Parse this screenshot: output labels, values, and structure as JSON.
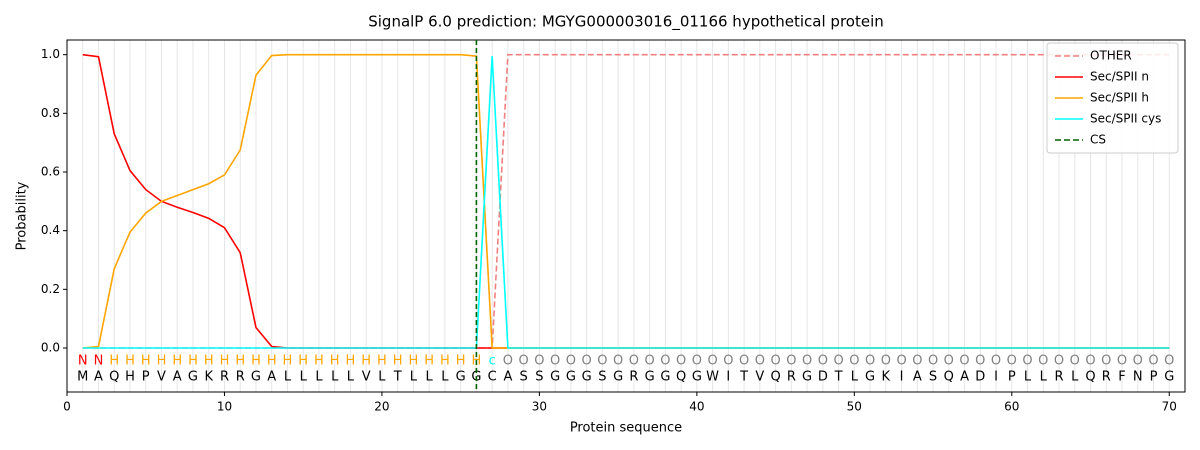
{
  "chart_data": {
    "type": "line",
    "title": "SignalP 6.0 prediction: MGYG000003016_01166 hypothetical protein",
    "x_label": "Protein sequence",
    "y_label": "Probability",
    "x": [
      1,
      2,
      3,
      4,
      5,
      6,
      7,
      8,
      9,
      10,
      11,
      12,
      13,
      14,
      15,
      16,
      17,
      18,
      19,
      20,
      21,
      22,
      23,
      24,
      25,
      26,
      27,
      28,
      29,
      30,
      31,
      32,
      33,
      34,
      35,
      36,
      37,
      38,
      39,
      40,
      41,
      42,
      43,
      44,
      45,
      46,
      47,
      48,
      49,
      50,
      51,
      52,
      53,
      54,
      55,
      56,
      57,
      58,
      59,
      60,
      61,
      62,
      63,
      64,
      65,
      66,
      67,
      68,
      69,
      70
    ],
    "sequence": [
      "M",
      "A",
      "Q",
      "H",
      "P",
      "V",
      "A",
      "G",
      "K",
      "R",
      "R",
      "G",
      "A",
      "L",
      "L",
      "L",
      "L",
      "L",
      "V",
      "L",
      "T",
      "L",
      "L",
      "L",
      "G",
      "G",
      "C",
      "A",
      "S",
      "S",
      "G",
      "G",
      "G",
      "S",
      "G",
      "R",
      "G",
      "G",
      "Q",
      "G",
      "W",
      "I",
      "T",
      "V",
      "Q",
      "R",
      "G",
      "D",
      "T",
      "L",
      "G",
      "K",
      "I",
      "A",
      "S",
      "Q",
      "A",
      "D",
      "I",
      "P",
      "L",
      "L",
      "R",
      "L",
      "Q",
      "R",
      "F",
      "N",
      "P",
      "G"
    ],
    "regions": [
      "N",
      "N",
      "H",
      "H",
      "H",
      "H",
      "H",
      "H",
      "H",
      "H",
      "H",
      "H",
      "H",
      "H",
      "H",
      "H",
      "H",
      "H",
      "H",
      "H",
      "H",
      "H",
      "H",
      "H",
      "H",
      "H",
      "c",
      "O",
      "O",
      "O",
      "O",
      "O",
      "O",
      "O",
      "O",
      "O",
      "O",
      "O",
      "O",
      "O",
      "O",
      "O",
      "O",
      "O",
      "O",
      "O",
      "O",
      "O",
      "O",
      "O",
      "O",
      "O",
      "O",
      "O",
      "O",
      "O",
      "O",
      "O",
      "O",
      "O",
      "O",
      "O",
      "O",
      "O",
      "O",
      "O",
      "O",
      "O",
      "O",
      "O"
    ],
    "region_colors": {
      "N": "red",
      "H": "orange",
      "c": "cyan",
      "O": "gray"
    },
    "series": [
      {
        "name": "OTHER",
        "color": "#f08080",
        "dashed": true,
        "values": [
          0,
          0,
          0,
          0,
          0,
          0,
          0,
          0,
          0,
          0,
          0,
          0,
          0,
          0,
          0,
          0,
          0,
          0,
          0,
          0,
          0,
          0,
          0,
          0,
          0,
          0,
          0,
          1,
          1,
          1,
          1,
          1,
          1,
          1,
          1,
          1,
          1,
          1,
          1,
          1,
          1,
          1,
          1,
          1,
          1,
          1,
          1,
          1,
          1,
          1,
          1,
          1,
          1,
          1,
          1,
          1,
          1,
          1,
          1,
          1,
          1,
          1,
          1,
          1,
          1,
          1,
          1,
          1,
          1,
          1
        ]
      },
      {
        "name": "Sec/SPII n",
        "color": "red",
        "dashed": false,
        "values": [
          1.0,
          0.993,
          0.73,
          0.605,
          0.54,
          0.5,
          0.48,
          0.462,
          0.442,
          0.41,
          0.325,
          0.07,
          0.005,
          0,
          0,
          0,
          0,
          0,
          0,
          0,
          0,
          0,
          0,
          0,
          0,
          0,
          0,
          0,
          0,
          0,
          0,
          0,
          0,
          0,
          0,
          0,
          0,
          0,
          0,
          0,
          0,
          0,
          0,
          0,
          0,
          0,
          0,
          0,
          0,
          0,
          0,
          0,
          0,
          0,
          0,
          0,
          0,
          0,
          0,
          0,
          0,
          0,
          0,
          0,
          0,
          0,
          0,
          0,
          0,
          0
        ]
      },
      {
        "name": "Sec/SPII h",
        "color": "orange",
        "dashed": false,
        "values": [
          0,
          0.005,
          0.27,
          0.395,
          0.46,
          0.5,
          0.52,
          0.54,
          0.56,
          0.59,
          0.675,
          0.93,
          0.997,
          1.0,
          1.0,
          1.0,
          1.0,
          1.0,
          1.0,
          1.0,
          1.0,
          1.0,
          1.0,
          1.0,
          1.0,
          0.995,
          0,
          0,
          0,
          0,
          0,
          0,
          0,
          0,
          0,
          0,
          0,
          0,
          0,
          0,
          0,
          0,
          0,
          0,
          0,
          0,
          0,
          0,
          0,
          0,
          0,
          0,
          0,
          0,
          0,
          0,
          0,
          0,
          0,
          0,
          0,
          0,
          0,
          0,
          0,
          0,
          0,
          0,
          0,
          0
        ]
      },
      {
        "name": "Sec/SPII cys",
        "color": "cyan",
        "dashed": false,
        "values": [
          0,
          0,
          0,
          0,
          0,
          0,
          0,
          0,
          0,
          0,
          0,
          0,
          0,
          0,
          0,
          0,
          0,
          0,
          0,
          0,
          0,
          0,
          0,
          0,
          0,
          0,
          0.995,
          0,
          0,
          0,
          0,
          0,
          0,
          0,
          0,
          0,
          0,
          0,
          0,
          0,
          0,
          0,
          0,
          0,
          0,
          0,
          0,
          0,
          0,
          0,
          0,
          0,
          0,
          0,
          0,
          0,
          0,
          0,
          0,
          0,
          0,
          0,
          0,
          0,
          0,
          0,
          0,
          0,
          0,
          0
        ]
      }
    ],
    "vlines": [
      {
        "name": "CS",
        "color": "darkgreen",
        "x": 26
      }
    ],
    "xlim": [
      0,
      71
    ],
    "ylim": [
      -0.15,
      1.05
    ],
    "xticks": [
      0,
      10,
      20,
      30,
      40,
      50,
      60,
      70
    ],
    "yticks": [
      {
        "value": 0,
        "label": "0.0"
      },
      {
        "value": 0.2,
        "label": "0.2"
      },
      {
        "value": 0.4,
        "label": "0.4"
      },
      {
        "value": 0.6,
        "label": "0.6"
      },
      {
        "value": 0.8,
        "label": "0.8"
      },
      {
        "value": 1.0,
        "label": "1.0"
      }
    ],
    "grid": true,
    "legend": "upper right"
  }
}
